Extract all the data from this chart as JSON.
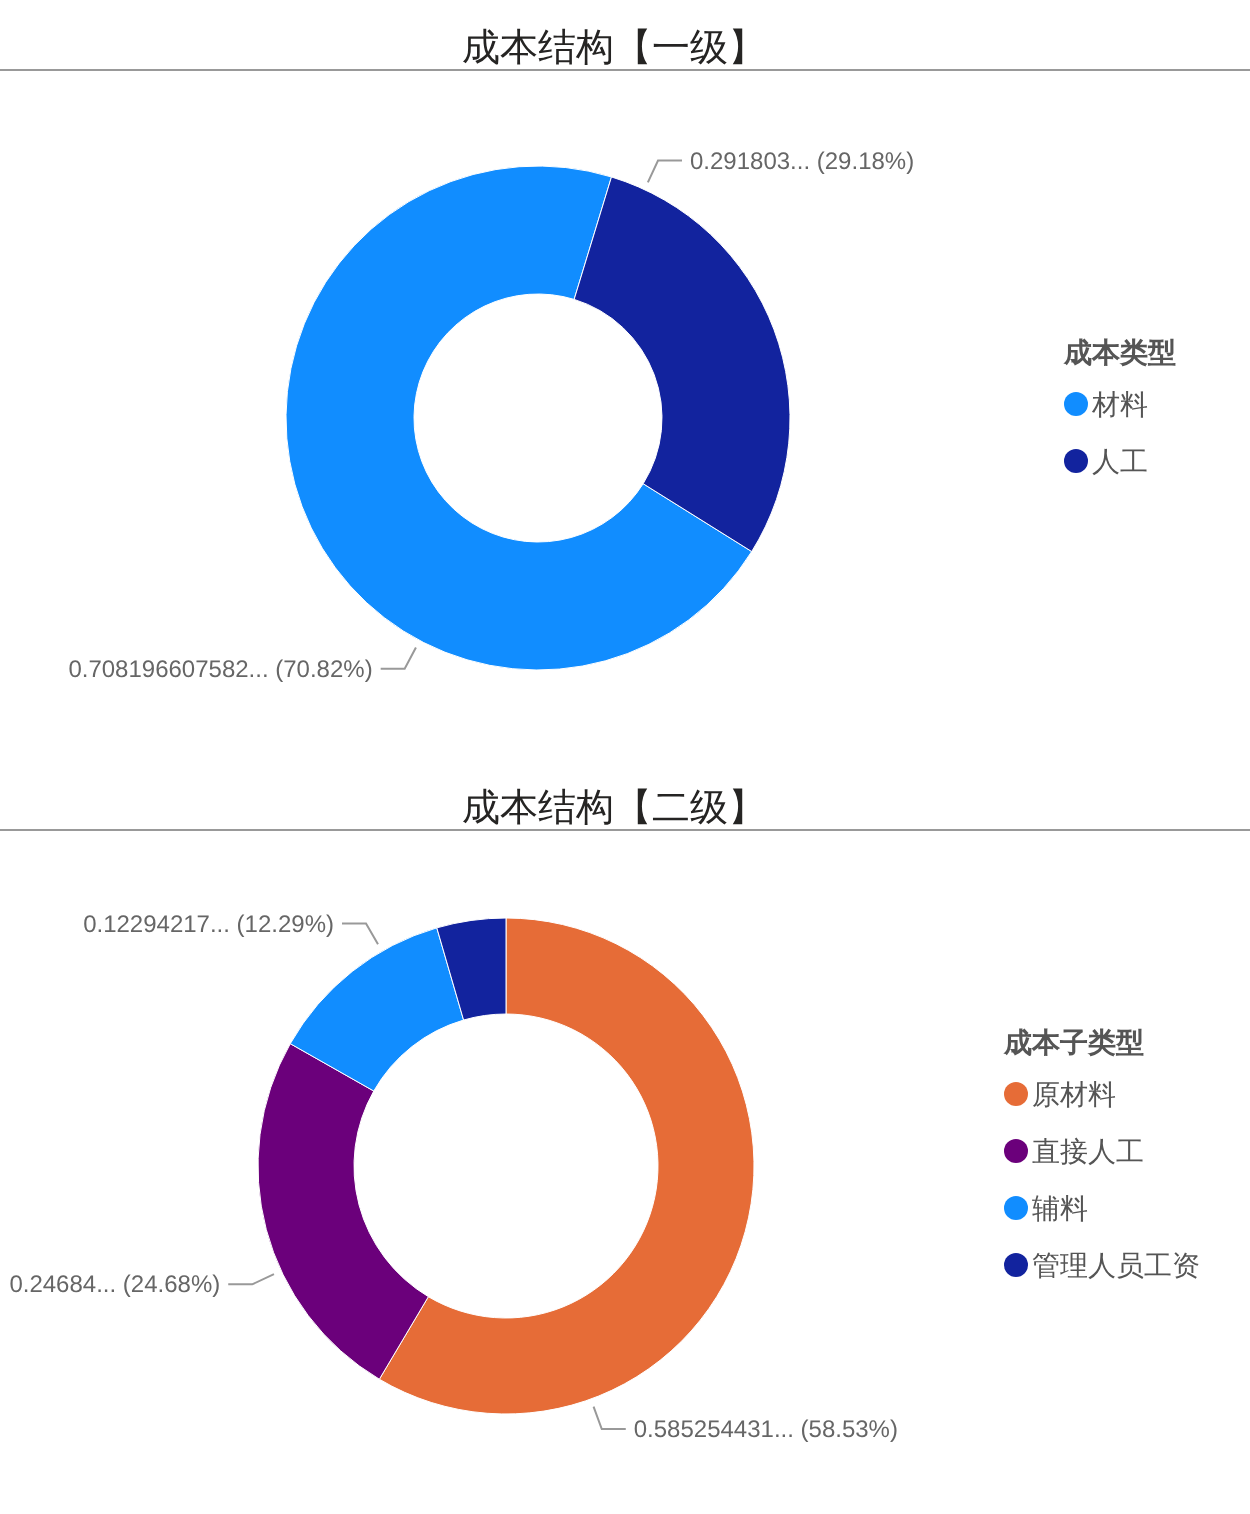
{
  "chart_data": [
    {
      "type": "donut",
      "title": "成本结构【一级】",
      "legend_title": "成本类型",
      "legend": "right",
      "categories": [
        "材料",
        "人工"
      ],
      "values": [
        70.82,
        29.18
      ],
      "colors": [
        "#118dff",
        "#12239e"
      ],
      "value_labels": [
        "0.708196607582... (70.82%)",
        "0.291803... (29.18%)"
      ]
    },
    {
      "type": "donut",
      "title": "成本结构【二级】",
      "legend_title": "成本子类型",
      "legend": "right",
      "categories": [
        "原材料",
        "直接人工",
        "辅料",
        "管理人员工资"
      ],
      "values": [
        58.53,
        24.68,
        12.29,
        4.5
      ],
      "colors": [
        "#e66c37",
        "#6b007b",
        "#118dff",
        "#12239e"
      ],
      "value_labels": [
        "0.585254431... (58.53%)",
        "0.24684... (24.68%)",
        "0.12294217... (12.29%)",
        null
      ]
    }
  ]
}
